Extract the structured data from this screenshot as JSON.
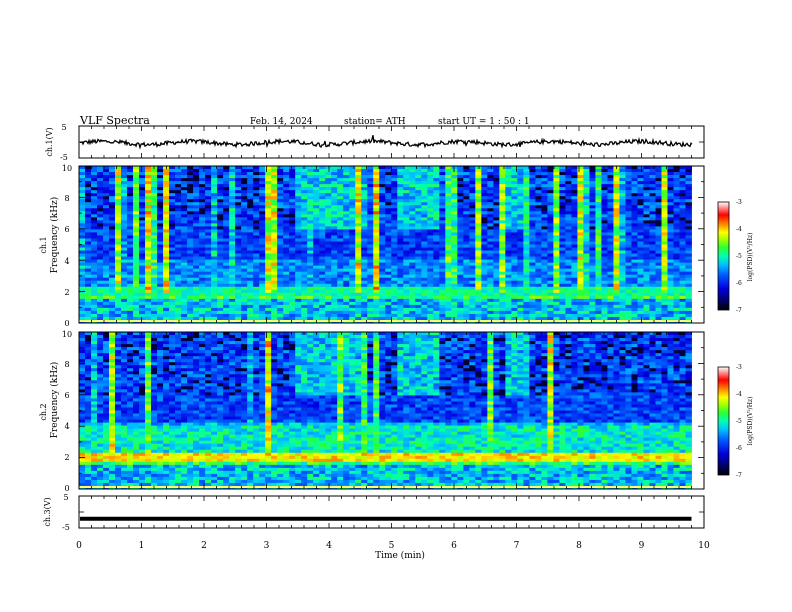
{
  "header": {
    "title": "VLF Spectra",
    "date": "Feb. 14, 2024",
    "station": "station= ATH",
    "start_ut": "start  UT  =   1 : 50 : 1"
  },
  "chart_data": [
    {
      "type": "line",
      "panel": "ch1-waveform",
      "ylabel": "ch.1(V)",
      "ylim": [
        -5,
        5
      ],
      "yticks": [
        "5",
        "-5"
      ],
      "xlim": [
        0,
        10
      ],
      "color": "#000000"
    },
    {
      "type": "heatmap",
      "panel": "ch1-spectrogram",
      "ylabel_line1": "ch.1",
      "ylabel_line2": "Frequency (kHz)",
      "ylim": [
        0,
        10
      ],
      "yticks": [
        "0",
        "2",
        "4",
        "6",
        "8",
        "10"
      ],
      "xlim": [
        0,
        10
      ],
      "data_end_min": 9.8,
      "colorbar": {
        "label": "log(PSD)(V²/Hz)",
        "range": [
          -7,
          -3
        ],
        "ticks": [
          "-3",
          "-4",
          "-5",
          "-6",
          "-7"
        ]
      }
    },
    {
      "type": "heatmap",
      "panel": "ch2-spectrogram",
      "ylabel_line1": "ch.2",
      "ylabel_line2": "Frequency (kHz)",
      "ylim": [
        0,
        10
      ],
      "yticks": [
        "0",
        "2",
        "4",
        "6",
        "8",
        "10"
      ],
      "xlim": [
        0,
        10
      ],
      "data_end_min": 9.8,
      "colorbar": {
        "label": "log(PSD)(V²/Hz)",
        "range": [
          -7,
          -3
        ],
        "ticks": [
          "-3",
          "-4",
          "-5",
          "-6",
          "-7"
        ]
      }
    },
    {
      "type": "line",
      "panel": "ch3-waveform",
      "ylabel": "ch.3(V)",
      "ylim": [
        -5,
        5
      ],
      "yticks": [
        "5",
        "-5"
      ],
      "xlim": [
        0,
        10
      ],
      "xlabel": "Time  (min)",
      "xticks": [
        "0",
        "1",
        "2",
        "3",
        "4",
        "5",
        "6",
        "7",
        "8",
        "9",
        "10"
      ],
      "constant_value": -2.1,
      "data_end_min": 9.8,
      "color": "#000000"
    }
  ]
}
